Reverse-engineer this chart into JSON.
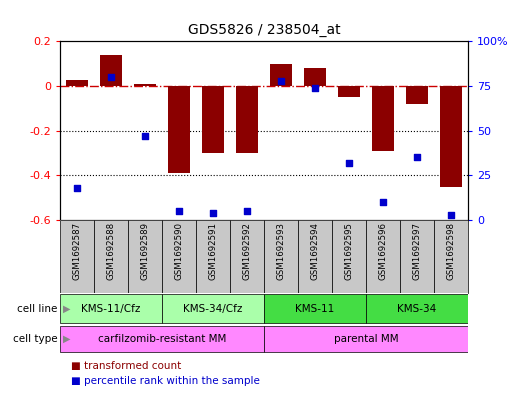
{
  "title": "GDS5826 / 238504_at",
  "samples": [
    "GSM1692587",
    "GSM1692588",
    "GSM1692589",
    "GSM1692590",
    "GSM1692591",
    "GSM1692592",
    "GSM1692593",
    "GSM1692594",
    "GSM1692595",
    "GSM1692596",
    "GSM1692597",
    "GSM1692598"
  ],
  "transformed_count": [
    0.025,
    0.14,
    0.01,
    -0.39,
    -0.3,
    -0.3,
    0.1,
    0.08,
    -0.05,
    -0.29,
    -0.08,
    -0.45
  ],
  "percentile_rank": [
    18,
    80,
    47,
    5,
    4,
    5,
    78,
    74,
    32,
    10,
    35,
    3
  ],
  "bar_color": "#8B0000",
  "dot_color": "#0000CC",
  "ref_line_color": "#CC0000",
  "ylim_left": [
    -0.6,
    0.2
  ],
  "ylim_right": [
    0,
    100
  ],
  "yticks_left": [
    0.2,
    0.0,
    -0.2,
    -0.4,
    -0.6
  ],
  "yticks_right": [
    100,
    75,
    50,
    25,
    0
  ],
  "cell_line_groups": [
    {
      "label": "KMS-11/Cfz",
      "start": 0,
      "end": 3,
      "color": "#AAFFAA"
    },
    {
      "label": "KMS-34/Cfz",
      "start": 3,
      "end": 6,
      "color": "#AAFFAA"
    },
    {
      "label": "KMS-11",
      "start": 6,
      "end": 9,
      "color": "#44DD44"
    },
    {
      "label": "KMS-34",
      "start": 9,
      "end": 12,
      "color": "#44DD44"
    }
  ],
  "cell_type_groups": [
    {
      "label": "carfilzomib-resistant MM",
      "start": 0,
      "end": 6,
      "color": "#FF88FF"
    },
    {
      "label": "parental MM",
      "start": 6,
      "end": 12,
      "color": "#FF88FF"
    }
  ],
  "legend_items": [
    {
      "label": "transformed count",
      "color": "#8B0000"
    },
    {
      "label": "percentile rank within the sample",
      "color": "#0000CC"
    }
  ],
  "cell_line_label": "cell line",
  "cell_type_label": "cell type",
  "bg_color": "#ffffff",
  "plot_bg_color": "#ffffff",
  "cell_line_bg": "#C8C8C8",
  "arrow_color": "#888888"
}
